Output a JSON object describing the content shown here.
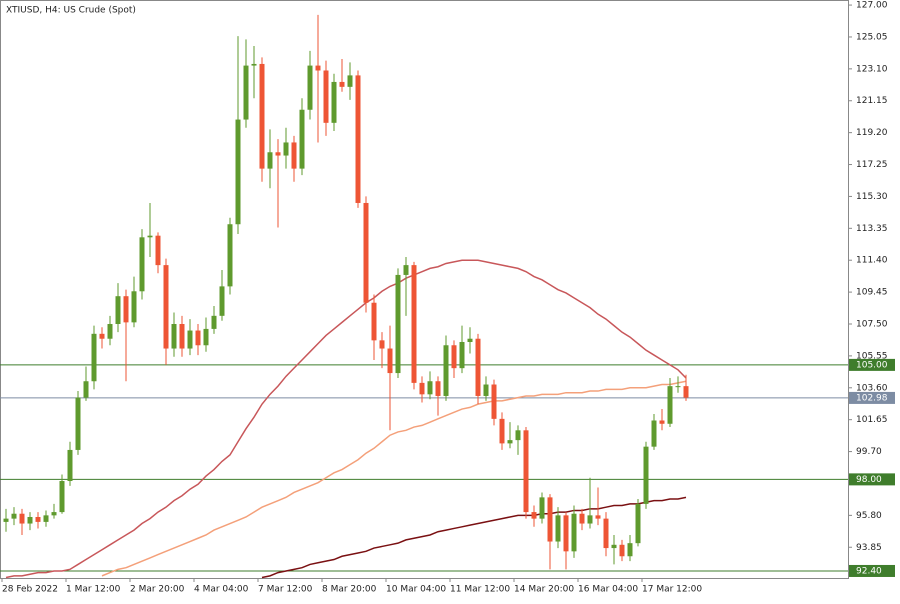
{
  "chart_data": {
    "type": "candlestick",
    "title": "XTIUSD, H4:  US Crude (Spot)",
    "categories": [
      "28 Feb 2022",
      null,
      null,
      null,
      null,
      null,
      null,
      null,
      "1 Mar 12:00",
      null,
      null,
      null,
      null,
      null,
      null,
      null,
      "2 Mar 20:00",
      null,
      null,
      null,
      null,
      null,
      null,
      null,
      "4 Mar 04:00",
      null,
      null,
      null,
      null,
      null,
      null,
      null,
      "7 Mar 12:00",
      null,
      null,
      null,
      null,
      null,
      null,
      null,
      "8 Mar 20:00",
      null,
      null,
      null,
      null,
      null,
      null,
      null,
      "10 Mar 04:00",
      null,
      null,
      null,
      null,
      null,
      null,
      null,
      "11 Mar 12:00",
      null,
      null,
      null,
      null,
      null,
      null,
      null,
      "14 Mar 20:00",
      null,
      null,
      null,
      null,
      null,
      null,
      null,
      "16 Mar 04:00",
      null,
      null,
      null,
      null,
      null,
      null,
      null,
      "17 Mar 12:00",
      null,
      null,
      null,
      null,
      null
    ],
    "open": [
      95.4,
      95.6,
      95.9,
      95.3,
      95.7,
      95.4,
      95.8,
      96.0,
      97.9,
      99.8,
      103.0,
      104.0,
      106.9,
      106.6,
      107.5,
      109.2,
      107.6,
      109.5,
      112.8,
      112.9,
      111.1,
      106.0,
      107.5,
      106.0,
      107.1,
      106.2,
      107.2,
      108.0,
      109.8,
      113.6,
      120.0,
      123.3,
      123.4,
      117.0,
      118.0,
      117.8,
      118.6,
      117.0,
      120.6,
      123.3,
      123.0,
      119.8,
      122.3,
      122.0,
      122.7,
      114.9,
      108.8,
      106.5,
      106.0,
      104.5,
      110.5,
      111.1,
      103.9,
      103.2,
      104.0,
      103.1,
      106.2,
      104.8,
      106.4,
      106.6,
      103.1,
      103.8,
      101.7,
      100.2,
      100.4,
      101.0,
      96.0,
      95.6,
      96.9,
      94.2,
      95.8,
      93.6,
      95.9,
      95.3,
      95.8,
      95.6,
      93.8,
      94.0,
      93.3,
      94.1,
      96.5,
      100.0,
      101.6,
      101.4,
      103.7,
      103.7
    ],
    "high": [
      96.2,
      96.3,
      96.2,
      96.0,
      96.0,
      96.1,
      96.5,
      98.3,
      100.3,
      103.4,
      104.9,
      107.4,
      107.3,
      108.0,
      110.0,
      109.6,
      110.4,
      113.3,
      114.9,
      113.1,
      111.5,
      108.2,
      108.0,
      107.8,
      107.5,
      107.9,
      108.6,
      110.8,
      114.0,
      125.1,
      124.9,
      124.5,
      123.8,
      119.4,
      118.8,
      119.5,
      119.0,
      121.3,
      124.2,
      126.4,
      123.6,
      122.8,
      123.7,
      123.5,
      123.0,
      115.3,
      109.3,
      107.0,
      107.4,
      110.9,
      111.6,
      111.3,
      104.3,
      104.6,
      104.3,
      106.8,
      106.5,
      107.4,
      107.3,
      106.9,
      104.3,
      104.1,
      102.1,
      101.5,
      101.3,
      101.2,
      96.4,
      97.2,
      97.1,
      96.3,
      96.0,
      96.4,
      96.2,
      98.1,
      97.5,
      96.0,
      94.6,
      94.3,
      94.6,
      96.8,
      100.3,
      102.0,
      102.3,
      104.2,
      104.3,
      104.4
    ],
    "low": [
      94.8,
      95.2,
      94.6,
      94.9,
      95.0,
      95.1,
      95.6,
      95.9,
      97.6,
      99.5,
      102.8,
      103.5,
      106.0,
      106.2,
      107.0,
      104.0,
      107.3,
      109.0,
      111.6,
      110.6,
      105.0,
      105.5,
      105.5,
      105.6,
      105.6,
      105.8,
      106.9,
      107.7,
      109.3,
      113.0,
      119.5,
      121.3,
      116.2,
      115.8,
      113.4,
      117.0,
      116.2,
      116.6,
      120.0,
      118.6,
      119.0,
      119.3,
      121.7,
      121.2,
      114.6,
      108.2,
      105.3,
      104.8,
      101.0,
      104.2,
      108.0,
      103.5,
      102.7,
      102.9,
      101.9,
      102.8,
      104.2,
      104.5,
      105.7,
      102.6,
      102.8,
      101.3,
      99.8,
      99.9,
      99.5,
      95.6,
      95.1,
      95.3,
      92.5,
      93.8,
      92.5,
      93.2,
      94.9,
      95.0,
      95.2,
      93.3,
      92.8,
      93.0,
      93.0,
      93.9,
      96.2,
      99.8,
      101.0,
      101.2,
      103.3,
      102.8
    ],
    "close": [
      95.6,
      95.9,
      95.3,
      95.7,
      95.4,
      95.8,
      96.0,
      97.9,
      99.8,
      103.0,
      104.0,
      106.9,
      106.6,
      107.5,
      109.2,
      107.6,
      109.5,
      112.8,
      112.9,
      111.1,
      106.0,
      107.5,
      106.0,
      107.1,
      106.2,
      107.2,
      108.0,
      109.8,
      113.6,
      120.0,
      123.3,
      123.4,
      117.0,
      118.0,
      117.8,
      118.6,
      117.0,
      120.6,
      123.3,
      123.0,
      119.8,
      122.3,
      122.0,
      122.7,
      114.9,
      108.8,
      106.5,
      106.0,
      104.5,
      110.5,
      111.1,
      103.9,
      103.2,
      104.0,
      103.1,
      106.2,
      104.8,
      106.4,
      106.6,
      103.1,
      103.8,
      101.7,
      100.2,
      100.4,
      101.0,
      96.0,
      95.6,
      96.9,
      94.2,
      95.8,
      93.6,
      95.9,
      95.3,
      95.8,
      95.6,
      93.8,
      94.0,
      93.3,
      94.1,
      96.5,
      100.0,
      101.6,
      101.4,
      103.7,
      103.7,
      103.0
    ],
    "up_color": "#5f9a2e",
    "down_color": "#ee5535",
    "lines": [
      {
        "color": "#c8575a",
        "values": [
          92.0,
          92.1,
          92.1,
          92.2,
          92.3,
          92.3,
          92.4,
          92.4,
          92.5,
          92.8,
          93.1,
          93.4,
          93.7,
          94.0,
          94.3,
          94.6,
          94.9,
          95.3,
          95.6,
          96.0,
          96.3,
          96.7,
          97.0,
          97.4,
          97.7,
          98.2,
          98.6,
          99.1,
          99.5,
          100.3,
          101.1,
          101.8,
          102.6,
          103.2,
          103.7,
          104.3,
          104.8,
          105.3,
          105.8,
          106.3,
          106.8,
          107.2,
          107.6,
          108.0,
          108.4,
          108.8,
          109.1,
          109.5,
          109.8,
          110.0,
          110.3,
          110.5,
          110.7,
          110.9,
          111.0,
          111.2,
          111.3,
          111.4,
          111.4,
          111.4,
          111.3,
          111.2,
          111.1,
          111.0,
          110.9,
          110.7,
          110.4,
          110.2,
          109.9,
          109.6,
          109.4,
          109.1,
          108.8,
          108.5,
          108.1,
          107.8,
          107.4,
          107.0,
          106.7,
          106.3,
          105.9,
          105.6,
          105.3,
          105.0,
          104.7,
          104.2
        ]
      },
      {
        "color": "#f4a07a",
        "values": [
          null,
          null,
          null,
          null,
          null,
          null,
          null,
          null,
          null,
          null,
          null,
          null,
          92.1,
          92.3,
          92.5,
          92.6,
          92.8,
          93.0,
          93.2,
          93.4,
          93.6,
          93.8,
          94.0,
          94.2,
          94.4,
          94.6,
          94.9,
          95.1,
          95.3,
          95.5,
          95.7,
          96.0,
          96.3,
          96.5,
          96.7,
          96.9,
          97.2,
          97.4,
          97.6,
          97.8,
          98.1,
          98.4,
          98.6,
          98.9,
          99.2,
          99.6,
          99.9,
          100.3,
          100.7,
          100.9,
          101.0,
          101.2,
          101.3,
          101.5,
          101.7,
          101.9,
          102.1,
          102.3,
          102.4,
          102.6,
          102.7,
          102.8,
          102.8,
          102.9,
          103.0,
          103.1,
          103.1,
          103.2,
          103.2,
          103.2,
          103.3,
          103.3,
          103.3,
          103.4,
          103.4,
          103.5,
          103.5,
          103.5,
          103.6,
          103.6,
          103.6,
          103.7,
          103.8,
          103.8,
          103.9,
          104.0
        ]
      },
      {
        "color": "#7a1012",
        "values": [
          null,
          null,
          null,
          null,
          null,
          null,
          null,
          null,
          null,
          null,
          null,
          null,
          null,
          null,
          null,
          null,
          null,
          null,
          null,
          null,
          null,
          null,
          null,
          null,
          null,
          null,
          null,
          null,
          null,
          null,
          null,
          null,
          92.0,
          92.1,
          92.3,
          92.4,
          92.5,
          92.6,
          92.8,
          92.9,
          93.0,
          93.1,
          93.3,
          93.4,
          93.5,
          93.6,
          93.8,
          93.9,
          94.0,
          94.1,
          94.3,
          94.4,
          94.5,
          94.6,
          94.8,
          94.9,
          95.0,
          95.1,
          95.2,
          95.3,
          95.4,
          95.5,
          95.6,
          95.7,
          95.8,
          95.8,
          95.8,
          95.9,
          95.9,
          96.0,
          96.0,
          96.1,
          96.1,
          96.2,
          96.2,
          96.3,
          96.4,
          96.4,
          96.5,
          96.5,
          96.6,
          96.7,
          96.7,
          96.8,
          96.8,
          96.9
        ]
      }
    ],
    "levels": [
      {
        "value": 105.0,
        "label": "105.00",
        "color": "#3f7d2c"
      },
      {
        "value": 102.98,
        "label": "102.98",
        "color": "#7d8ca3"
      },
      {
        "value": 98.0,
        "label": "98.00",
        "color": "#3f7d2c"
      },
      {
        "value": 92.4,
        "label": "92.40",
        "color": "#3f7d2c"
      }
    ],
    "ylim": [
      91.97,
      127.31
    ],
    "yticks": [
      {
        "value": 127.0,
        "label": "127.00"
      },
      {
        "value": 125.05,
        "label": "125.05"
      },
      {
        "value": 123.1,
        "label": "123.10"
      },
      {
        "value": 121.15,
        "label": "121.15"
      },
      {
        "value": 119.2,
        "label": "119.20"
      },
      {
        "value": 117.25,
        "label": "117.25"
      },
      {
        "value": 115.3,
        "label": "115.30"
      },
      {
        "value": 113.35,
        "label": "113.35"
      },
      {
        "value": 111.4,
        "label": "111.40"
      },
      {
        "value": 109.45,
        "label": "109.45"
      },
      {
        "value": 107.5,
        "label": "107.50"
      },
      {
        "value": 105.55,
        "label": "105.55"
      },
      {
        "value": 103.6,
        "label": "103.60"
      },
      {
        "value": 101.65,
        "label": "101.65"
      },
      {
        "value": 99.7,
        "label": "99.70"
      },
      {
        "value": 95.8,
        "label": "95.80"
      },
      {
        "value": 93.85,
        "label": "93.85"
      }
    ]
  }
}
